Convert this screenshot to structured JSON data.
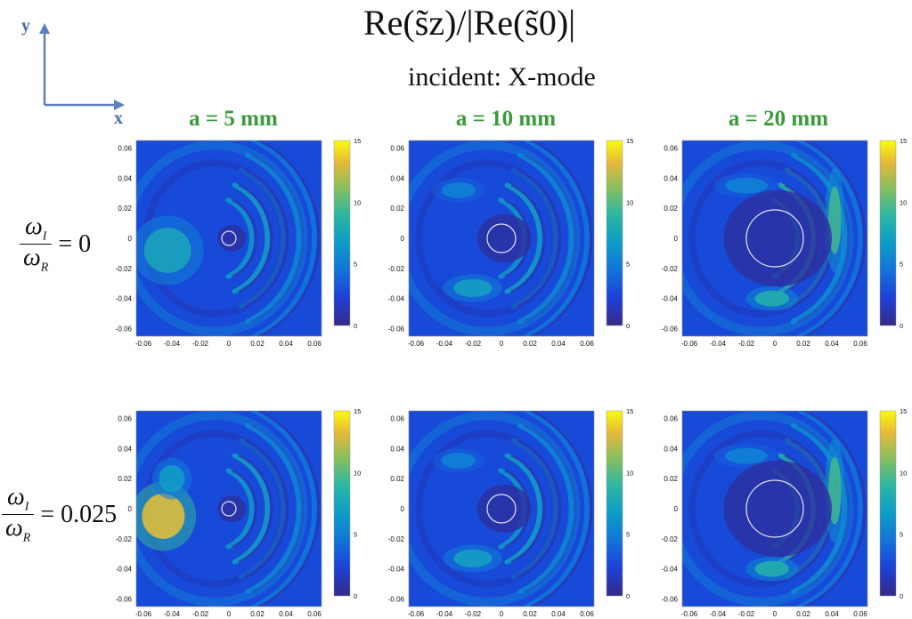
{
  "header": {
    "title": "Re(s̃z)/|Re(s̃0)|",
    "subtitle": "incident: X-mode"
  },
  "axes_indicator": {
    "y_label": "y",
    "x_label": "x"
  },
  "columns": [
    "a = 5 mm",
    "a = 10 mm",
    "a = 20 mm"
  ],
  "rows": [
    {
      "num": "ω",
      "num_sub": "I",
      "den": "ω",
      "den_sub": "R",
      "eq": "= 0"
    },
    {
      "num": "ω",
      "num_sub": "I",
      "den": "ω",
      "den_sub": "R",
      "eq": "= 0.025"
    }
  ],
  "colors": {
    "column_header": "#3a9a3a",
    "axes_indicator": "#4a6fa5"
  },
  "chart_data": [
    {
      "type": "heatmap",
      "row": 0,
      "col": 0,
      "a_mm": 5,
      "omega_ratio": 0,
      "xlim": [
        -0.065,
        0.065
      ],
      "ylim": [
        -0.065,
        0.065
      ],
      "xticks": [
        "-0.06",
        "-0.04",
        "-0.02",
        "0",
        "0.02",
        "0.04",
        "0.06"
      ],
      "yticks": [
        "0.06",
        "0.04",
        "0.02",
        "0",
        "-0.02",
        "-0.04",
        "-0.06"
      ],
      "colorbar": {
        "range": [
          0,
          15
        ],
        "ticks": [
          "15",
          "10",
          "5",
          "0"
        ]
      },
      "circle_radius": 0.005,
      "peak_value": 8
    },
    {
      "type": "heatmap",
      "row": 0,
      "col": 1,
      "a_mm": 10,
      "omega_ratio": 0,
      "xlim": [
        -0.065,
        0.065
      ],
      "ylim": [
        -0.065,
        0.065
      ],
      "xticks": [
        "-0.06",
        "-0.04",
        "-0.02",
        "0",
        "0.02",
        "0.04",
        "0.06"
      ],
      "yticks": [
        "0.06",
        "0.04",
        "0.02",
        "0",
        "-0.02",
        "-0.04",
        "-0.06"
      ],
      "colorbar": {
        "range": [
          0,
          15
        ],
        "ticks": [
          "15",
          "10",
          "5",
          "0"
        ]
      },
      "circle_radius": 0.01,
      "peak_value": 7
    },
    {
      "type": "heatmap",
      "row": 0,
      "col": 2,
      "a_mm": 20,
      "omega_ratio": 0,
      "xlim": [
        -0.065,
        0.065
      ],
      "ylim": [
        -0.065,
        0.065
      ],
      "xticks": [
        "-0.06",
        "-0.04",
        "-0.02",
        "0",
        "0.02",
        "0.04",
        "0.06"
      ],
      "yticks": [
        "0.06",
        "0.04",
        "0.02",
        "0",
        "-0.02",
        "-0.04",
        "-0.06"
      ],
      "colorbar": {
        "range": [
          0,
          15
        ],
        "ticks": [
          "15",
          "10",
          "5",
          "0"
        ]
      },
      "circle_radius": 0.02,
      "peak_value": 9
    },
    {
      "type": "heatmap",
      "row": 1,
      "col": 0,
      "a_mm": 5,
      "omega_ratio": 0.025,
      "xlim": [
        -0.065,
        0.065
      ],
      "ylim": [
        -0.065,
        0.065
      ],
      "xticks": [
        "-0.06",
        "-0.04",
        "-0.02",
        "0",
        "0.02",
        "0.04",
        "0.06"
      ],
      "yticks": [
        "0.06",
        "0.04",
        "0.02",
        "0",
        "-0.02",
        "-0.04",
        "-0.06"
      ],
      "colorbar": {
        "range": [
          0,
          15
        ],
        "ticks": [
          "15",
          "10",
          "5",
          "0"
        ]
      },
      "circle_radius": 0.005,
      "peak_value": 13
    },
    {
      "type": "heatmap",
      "row": 1,
      "col": 1,
      "a_mm": 10,
      "omega_ratio": 0.025,
      "xlim": [
        -0.065,
        0.065
      ],
      "ylim": [
        -0.065,
        0.065
      ],
      "xticks": [
        "-0.06",
        "-0.04",
        "-0.02",
        "0",
        "0.02",
        "0.04",
        "0.06"
      ],
      "yticks": [
        "0.06",
        "0.04",
        "0.02",
        "0",
        "-0.02",
        "-0.04",
        "-0.06"
      ],
      "colorbar": {
        "range": [
          0,
          15
        ],
        "ticks": [
          "15",
          "10",
          "5",
          "0"
        ]
      },
      "circle_radius": 0.01,
      "peak_value": 7
    },
    {
      "type": "heatmap",
      "row": 1,
      "col": 2,
      "a_mm": 20,
      "omega_ratio": 0.025,
      "xlim": [
        -0.065,
        0.065
      ],
      "ylim": [
        -0.065,
        0.065
      ],
      "xticks": [
        "-0.06",
        "-0.04",
        "-0.02",
        "0",
        "0.02",
        "0.04",
        "0.06"
      ],
      "yticks": [
        "0.06",
        "0.04",
        "0.02",
        "0",
        "-0.02",
        "-0.04",
        "-0.06"
      ],
      "colorbar": {
        "range": [
          0,
          15
        ],
        "ticks": [
          "15",
          "10",
          "5",
          "0"
        ]
      },
      "circle_radius": 0.02,
      "peak_value": 9
    }
  ]
}
